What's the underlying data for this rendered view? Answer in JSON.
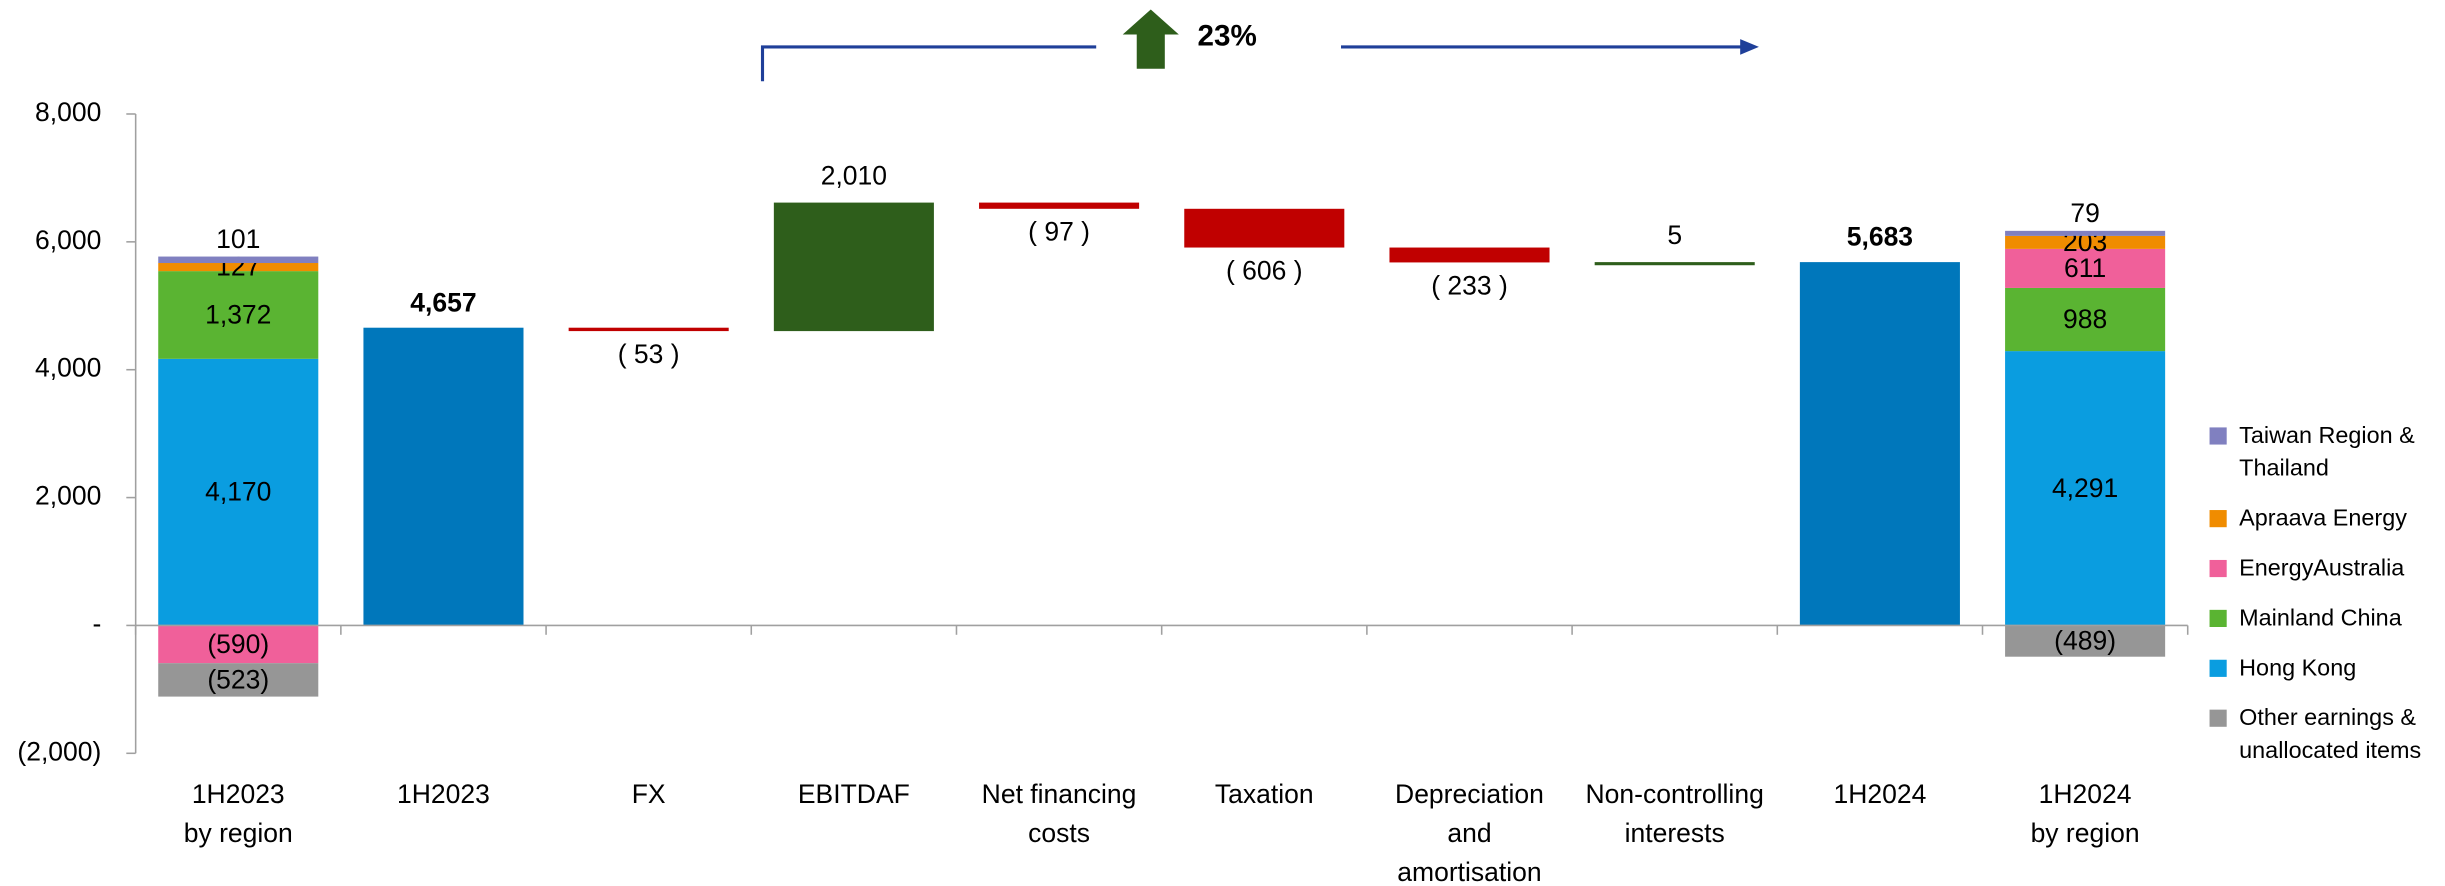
{
  "chart_data": {
    "type": "waterfall",
    "annotation": "23%",
    "categories": [
      "1H2023\nby region",
      "1H2023",
      "FX",
      "EBITDAF",
      "Net financing\ncosts",
      "Taxation",
      "Depreciation\nand\namortisation",
      "Non-controlling\ninterests",
      "1H2024",
      "1H2024\nby region"
    ],
    "ylim": [
      -2000,
      8000
    ],
    "yticks": [
      {
        "value": -2000,
        "label": "(2,000)"
      },
      {
        "value": 0,
        "label": "-"
      },
      {
        "value": 2000,
        "label": "2,000"
      },
      {
        "value": 4000,
        "label": "4,000"
      },
      {
        "value": 6000,
        "label": "6,000"
      },
      {
        "value": 8000,
        "label": "8,000"
      }
    ],
    "measures": [
      null,
      "total",
      "relative",
      "relative",
      "relative",
      "relative",
      "relative",
      "relative",
      "total",
      null
    ],
    "values": [
      null,
      4657,
      -53,
      2010,
      -97,
      -606,
      -233,
      5,
      5683,
      null
    ],
    "value_labels": [
      null,
      "4,657",
      "( 53 )",
      "2,010",
      "( 97 )",
      "( 606 )",
      "( 233 )",
      "5",
      "5,683",
      null
    ],
    "colors": {
      "total": "#0077bb",
      "increase": "#2e5e1b",
      "decrease": "#c00000"
    },
    "series": [
      {
        "name": "Taiwan Region &\nThailand",
        "color": "#8080c0",
        "values": [
          101,
          null,
          null,
          null,
          null,
          null,
          null,
          null,
          null,
          79
        ],
        "value_labels": [
          "101",
          null,
          null,
          null,
          null,
          null,
          null,
          null,
          null,
          "79"
        ]
      },
      {
        "name": "Apraava Energy",
        "color": "#f08c00",
        "values": [
          127,
          null,
          null,
          null,
          null,
          null,
          null,
          null,
          null,
          203
        ],
        "value_labels": [
          "127",
          null,
          null,
          null,
          null,
          null,
          null,
          null,
          null,
          "203"
        ]
      },
      {
        "name": "EnergyAustralia",
        "color": "#f0609a",
        "values": [
          -590,
          null,
          null,
          null,
          null,
          null,
          null,
          null,
          null,
          611
        ],
        "value_labels": [
          "(590)",
          null,
          null,
          null,
          null,
          null,
          null,
          null,
          null,
          "611"
        ]
      },
      {
        "name": "Mainland China",
        "color": "#5ab432",
        "values": [
          1372,
          null,
          null,
          null,
          null,
          null,
          null,
          null,
          null,
          988
        ],
        "value_labels": [
          "1,372",
          null,
          null,
          null,
          null,
          null,
          null,
          null,
          null,
          "988"
        ]
      },
      {
        "name": "Hong Kong",
        "color": "#0a9de0",
        "values": [
          4170,
          null,
          null,
          null,
          null,
          null,
          null,
          null,
          null,
          4291
        ],
        "value_labels": [
          "4,170",
          null,
          null,
          null,
          null,
          null,
          null,
          null,
          null,
          "4,291"
        ]
      },
      {
        "name": "Other earnings &\nunallocated items",
        "color": "#969696",
        "values": [
          -523,
          null,
          null,
          null,
          null,
          null,
          null,
          null,
          null,
          -489
        ],
        "value_labels": [
          "(523)",
          null,
          null,
          null,
          null,
          null,
          null,
          null,
          null,
          "(489)"
        ]
      }
    ],
    "legend": "right"
  }
}
